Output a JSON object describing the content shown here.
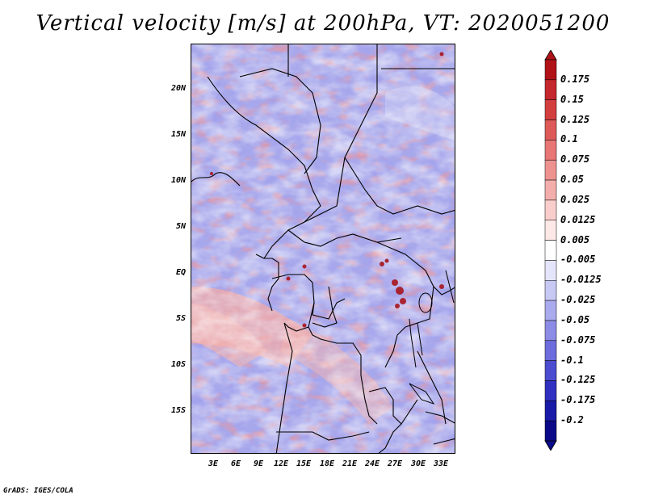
{
  "title": "Vertical velocity [m/s] at 200hPa, VT: 2020051200",
  "footer": "GrADS: IGES/COLA",
  "map": {
    "latitude_labels": [
      "20N",
      "15N",
      "10N",
      "5N",
      "EQ",
      "5S",
      "10S",
      "15S"
    ],
    "longitude_labels": [
      "3E",
      "6E",
      "9E",
      "12E",
      "15E",
      "18E",
      "21E",
      "24E",
      "27E",
      "30E",
      "33E"
    ]
  },
  "legend": {
    "labels": [
      "0.175",
      "0.15",
      "0.125",
      "0.1",
      "0.075",
      "0.05",
      "0.025",
      "0.0125",
      "0.005",
      "-0.005",
      "-0.0125",
      "-0.025",
      "-0.05",
      "-0.075",
      "-0.1",
      "-0.125",
      "-0.175",
      "-0.2"
    ],
    "colors": [
      "#b01218",
      "#c4272d",
      "#d33e3f",
      "#de5a58",
      "#e87674",
      "#ee9290",
      "#f3aeac",
      "#f8cdcb",
      "#fce8e7",
      "#ffffff",
      "#e4e4fb",
      "#c8c8f4",
      "#aaaaee",
      "#8c8ce6",
      "#6c6cdc",
      "#4c4cd0",
      "#3030c0",
      "#1a1aa8",
      "#0a0a88"
    ]
  }
}
